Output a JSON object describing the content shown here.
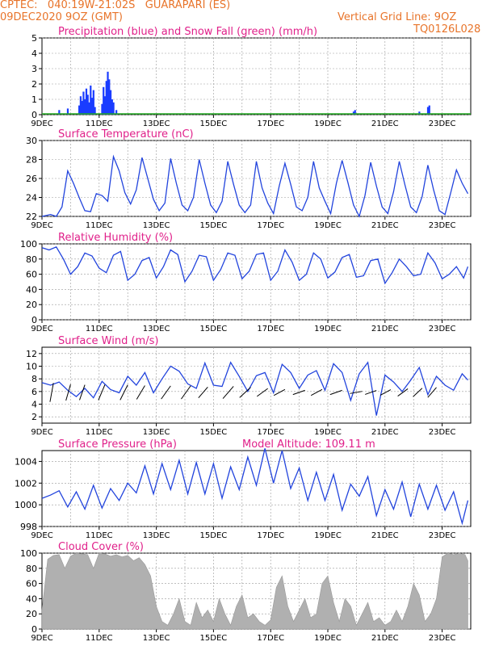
{
  "header": {
    "line1": "CPTEC:   040:19W-21:02S   GUARAPARI (ES)",
    "line2": "09DEC2020 9OZ (GMT)",
    "grid_note": "Vertical Grid Line: 9OZ",
    "code": "TQ0126L028"
  },
  "colors": {
    "header": "#e8742a",
    "title": "#e0208a",
    "line": "#2244dd",
    "precip": "#1a3cff",
    "snow": "#22aa22",
    "cloud": "#b0b0b0",
    "arrow": "#000000"
  },
  "x_ticks": [
    "9DEC",
    "11DEC",
    "13DEC",
    "15DEC",
    "17DEC",
    "19DEC",
    "21DEC",
    "23DEC"
  ],
  "chart_data": [
    {
      "type": "bar",
      "title": "Precipitation (blue) and Snow Fall (green) (mm/h)",
      "xlabel": "",
      "ylabel": "",
      "ylim": [
        0,
        5
      ],
      "yticks": [
        "0",
        "1",
        "2",
        "3",
        "4",
        "5"
      ],
      "grid": true,
      "x_unit": "days since 9DEC 00Z",
      "series": [
        {
          "name": "Precipitation",
          "x": [
            0.6,
            0.9,
            1.3,
            1.35,
            1.4,
            1.45,
            1.5,
            1.55,
            1.6,
            1.65,
            1.7,
            1.75,
            1.8,
            1.85,
            2.1,
            2.15,
            2.2,
            2.25,
            2.3,
            2.35,
            2.4,
            2.45,
            2.5,
            2.6,
            10.9,
            10.95,
            13.2,
            13.5,
            13.55
          ],
          "values": [
            0.3,
            0.4,
            0.6,
            1.2,
            0.9,
            1.5,
            1.0,
            1.7,
            1.3,
            0.8,
            1.9,
            1.1,
            1.6,
            0.5,
            0.7,
            1.8,
            1.2,
            2.2,
            2.8,
            2.3,
            1.6,
            1.0,
            0.8,
            0.3,
            0.2,
            0.3,
            0.2,
            0.5,
            0.6
          ]
        },
        {
          "name": "Snow Fall",
          "x": [
            0.0,
            14.9
          ],
          "values": [
            0.0,
            0.0
          ]
        }
      ]
    },
    {
      "type": "line",
      "title": "Surface Temperature (nC)",
      "xlabel": "",
      "ylabel": "",
      "ylim": [
        22,
        30
      ],
      "yticks": [
        "22",
        "24",
        "26",
        "28",
        "30"
      ],
      "grid": true,
      "series": [
        {
          "name": "",
          "x": [
            0,
            0.3,
            0.5,
            0.7,
            0.9,
            1.1,
            1.3,
            1.5,
            1.7,
            1.9,
            2.1,
            2.3,
            2.5,
            2.7,
            2.9,
            3.1,
            3.3,
            3.5,
            3.7,
            3.9,
            4.1,
            4.3,
            4.5,
            4.7,
            4.9,
            5.1,
            5.3,
            5.5,
            5.7,
            5.9,
            6.1,
            6.3,
            6.5,
            6.7,
            6.9,
            7.1,
            7.3,
            7.5,
            7.7,
            7.9,
            8.1,
            8.3,
            8.5,
            8.7,
            8.9,
            9.1,
            9.3,
            9.5,
            9.7,
            9.9,
            10.1,
            10.3,
            10.5,
            10.7,
            10.9,
            11.1,
            11.3,
            11.5,
            11.7,
            11.9,
            12.1,
            12.3,
            12.5,
            12.7,
            12.9,
            13.1,
            13.3,
            13.5,
            13.7,
            13.9,
            14.1,
            14.3,
            14.5,
            14.7,
            14.9
          ],
          "values": [
            22.0,
            22.2,
            22.0,
            23.0,
            26.8,
            25.5,
            24.0,
            22.6,
            22.5,
            24.4,
            24.2,
            23.6,
            28.3,
            26.8,
            24.5,
            23.3,
            24.8,
            28.2,
            26.0,
            23.8,
            22.6,
            23.4,
            28.1,
            25.5,
            23.2,
            22.6,
            24.0,
            28.0,
            25.5,
            23.2,
            22.4,
            23.6,
            27.8,
            25.4,
            23.2,
            22.4,
            23.2,
            27.8,
            25.0,
            23.4,
            22.3,
            25.2,
            27.6,
            25.4,
            23.0,
            22.6,
            24.0,
            27.8,
            25.0,
            23.6,
            22.3,
            25.5,
            27.9,
            25.6,
            23.2,
            22.0,
            24.2,
            27.7,
            25.2,
            23.0,
            22.3,
            24.6,
            27.8,
            25.3,
            23.0,
            22.4,
            24.1,
            27.4,
            24.8,
            22.6,
            22.2,
            24.5,
            26.9,
            25.5,
            24.4
          ]
        }
      ]
    },
    {
      "type": "line",
      "title": "Relative Humidity (%)",
      "xlabel": "",
      "ylabel": "",
      "ylim": [
        0,
        100
      ],
      "yticks": [
        "0",
        "20",
        "40",
        "60",
        "80",
        "100"
      ],
      "grid": true,
      "series": [
        {
          "name": "",
          "x": [
            0,
            0.25,
            0.5,
            0.75,
            1.0,
            1.25,
            1.5,
            1.75,
            2.0,
            2.25,
            2.5,
            2.75,
            3.0,
            3.25,
            3.5,
            3.75,
            4.0,
            4.25,
            4.5,
            4.75,
            5.0,
            5.25,
            5.5,
            5.75,
            6.0,
            6.25,
            6.5,
            6.75,
            7.0,
            7.25,
            7.5,
            7.75,
            8.0,
            8.25,
            8.5,
            8.75,
            9.0,
            9.25,
            9.5,
            9.75,
            10.0,
            10.25,
            10.5,
            10.75,
            11.0,
            11.25,
            11.5,
            11.75,
            12.0,
            12.25,
            12.5,
            12.75,
            13.0,
            13.25,
            13.5,
            13.75,
            14.0,
            14.25,
            14.5,
            14.75,
            14.9
          ],
          "values": [
            95,
            92,
            96,
            80,
            60,
            70,
            88,
            84,
            68,
            62,
            85,
            90,
            52,
            60,
            78,
            82,
            55,
            70,
            92,
            86,
            50,
            64,
            85,
            83,
            52,
            66,
            88,
            85,
            54,
            64,
            86,
            88,
            52,
            64,
            92,
            76,
            52,
            60,
            88,
            80,
            55,
            63,
            82,
            86,
            56,
            58,
            78,
            80,
            48,
            62,
            80,
            70,
            58,
            60,
            88,
            75,
            54,
            60,
            70,
            55,
            70
          ]
        }
      ]
    },
    {
      "type": "line",
      "title": "Surface Wind (m/s)",
      "xlabel": "",
      "ylabel": "",
      "ylim": [
        1,
        13
      ],
      "yticks": [
        "2",
        "4",
        "6",
        "8",
        "10",
        "12"
      ],
      "grid": true,
      "series": [
        {
          "name": "Wind speed",
          "x": [
            0,
            0.3,
            0.6,
            0.9,
            1.2,
            1.5,
            1.8,
            2.1,
            2.4,
            2.7,
            3.0,
            3.3,
            3.6,
            3.9,
            4.2,
            4.5,
            4.8,
            5.1,
            5.4,
            5.7,
            6.0,
            6.3,
            6.6,
            6.9,
            7.2,
            7.5,
            7.8,
            8.1,
            8.4,
            8.7,
            9.0,
            9.3,
            9.6,
            9.9,
            10.2,
            10.5,
            10.8,
            11.1,
            11.4,
            11.7,
            12.0,
            12.3,
            12.6,
            12.9,
            13.2,
            13.5,
            13.8,
            14.1,
            14.4,
            14.7,
            14.9
          ],
          "values": [
            7.4,
            7.0,
            7.5,
            6.2,
            5.2,
            6.5,
            5.0,
            7.6,
            6.3,
            5.8,
            8.4,
            7.0,
            9.0,
            5.8,
            8.0,
            10.0,
            9.2,
            7.2,
            6.5,
            10.5,
            7.0,
            6.8,
            10.6,
            8.4,
            6.0,
            8.5,
            9.0,
            5.8,
            10.3,
            9.0,
            6.5,
            8.6,
            9.3,
            6.2,
            10.4,
            9.0,
            4.6,
            8.8,
            10.6,
            2.2,
            8.6,
            7.5,
            6.0,
            7.8,
            9.8,
            5.5,
            8.4,
            7.0,
            6.2,
            8.8,
            7.8
          ]
        },
        {
          "name": "Wind direction",
          "x": [
            0.4,
            1.0,
            1.5,
            2.2,
            3.0,
            3.6,
            4.5,
            5.2,
            5.8,
            6.7,
            7.3,
            7.9,
            8.5,
            9.2,
            9.8,
            10.5,
            11.2,
            11.7,
            12.2,
            12.8,
            13.3,
            13.8
          ],
          "speed": [
            6,
            5,
            5,
            6,
            7,
            7,
            8,
            8,
            7,
            9,
            9,
            8,
            8,
            9,
            8,
            9,
            9,
            8,
            7,
            7,
            6,
            6
          ],
          "dir_deg": [
            20,
            30,
            35,
            40,
            45,
            50,
            55,
            55,
            60,
            60,
            65,
            70,
            75,
            80,
            75,
            80,
            85,
            80,
            75,
            70,
            65,
            60
          ]
        }
      ]
    },
    {
      "type": "line",
      "title": "Surface Pressure (hPa)",
      "model_altitude": "Model Altitude: 109.11  m",
      "xlabel": "",
      "ylabel": "",
      "ylim": [
        998,
        1005
      ],
      "yticks": [
        "998",
        "1000",
        "1002",
        "1004"
      ],
      "grid": true,
      "series": [
        {
          "name": "",
          "x": [
            0,
            0.3,
            0.6,
            0.9,
            1.2,
            1.5,
            1.8,
            2.1,
            2.4,
            2.7,
            3.0,
            3.3,
            3.6,
            3.9,
            4.2,
            4.5,
            4.8,
            5.1,
            5.4,
            5.7,
            6.0,
            6.3,
            6.6,
            6.9,
            7.2,
            7.5,
            7.8,
            8.1,
            8.4,
            8.7,
            9.0,
            9.3,
            9.6,
            9.9,
            10.2,
            10.5,
            10.8,
            11.1,
            11.4,
            11.7,
            12.0,
            12.3,
            12.6,
            12.9,
            13.2,
            13.5,
            13.8,
            14.1,
            14.4,
            14.7,
            14.9
          ],
          "values": [
            1000.6,
            1000.9,
            1001.3,
            999.8,
            1001.2,
            999.6,
            1001.8,
            999.7,
            1001.5,
            1000.4,
            1002.0,
            1001.1,
            1003.6,
            1001.0,
            1003.8,
            1001.4,
            1004.1,
            1001.0,
            1003.9,
            1001.0,
            1003.8,
            1000.6,
            1003.5,
            1001.4,
            1004.4,
            1001.8,
            1005.2,
            1002.0,
            1005.0,
            1001.5,
            1003.4,
            1000.4,
            1003.0,
            1000.4,
            1002.8,
            999.5,
            1001.9,
            1000.8,
            1002.6,
            999.0,
            1001.4,
            999.6,
            1002.1,
            998.9,
            1001.9,
            999.6,
            1001.8,
            999.5,
            1001.2,
            998.3,
            1000.4
          ]
        }
      ]
    },
    {
      "type": "area",
      "title": "Cloud Cover (%)",
      "xlabel": "",
      "ylabel": "",
      "ylim": [
        0,
        100
      ],
      "yticks": [
        "0",
        "20",
        "40",
        "60",
        "80",
        "100"
      ],
      "grid": true,
      "series": [
        {
          "name": "",
          "x": [
            0,
            0.2,
            0.4,
            0.6,
            0.8,
            1.0,
            1.2,
            1.4,
            1.6,
            1.8,
            2.0,
            2.2,
            2.4,
            2.6,
            2.8,
            3.0,
            3.2,
            3.4,
            3.6,
            3.8,
            4.0,
            4.2,
            4.4,
            4.6,
            4.8,
            5.0,
            5.2,
            5.4,
            5.6,
            5.8,
            6.0,
            6.2,
            6.4,
            6.6,
            6.8,
            7.0,
            7.2,
            7.4,
            7.6,
            7.8,
            8.0,
            8.2,
            8.4,
            8.6,
            8.8,
            9.0,
            9.2,
            9.4,
            9.6,
            9.8,
            10.0,
            10.2,
            10.4,
            10.6,
            10.8,
            11.0,
            11.2,
            11.4,
            11.6,
            11.8,
            12.0,
            12.2,
            12.4,
            12.6,
            12.8,
            13.0,
            13.2,
            13.4,
            13.6,
            13.8,
            14.0,
            14.2,
            14.4,
            14.6,
            14.8,
            14.9
          ],
          "values": [
            25,
            92,
            97,
            98,
            80,
            96,
            100,
            99,
            98,
            80,
            100,
            99,
            96,
            98,
            95,
            97,
            90,
            94,
            85,
            70,
            30,
            10,
            5,
            20,
            40,
            10,
            5,
            35,
            15,
            25,
            10,
            40,
            20,
            5,
            30,
            45,
            15,
            20,
            10,
            5,
            12,
            55,
            70,
            30,
            10,
            25,
            40,
            15,
            20,
            60,
            70,
            35,
            10,
            40,
            30,
            5,
            20,
            35,
            10,
            15,
            5,
            10,
            25,
            10,
            30,
            60,
            45,
            10,
            20,
            40,
            95,
            100,
            98,
            100,
            98,
            90
          ]
        }
      ]
    }
  ]
}
